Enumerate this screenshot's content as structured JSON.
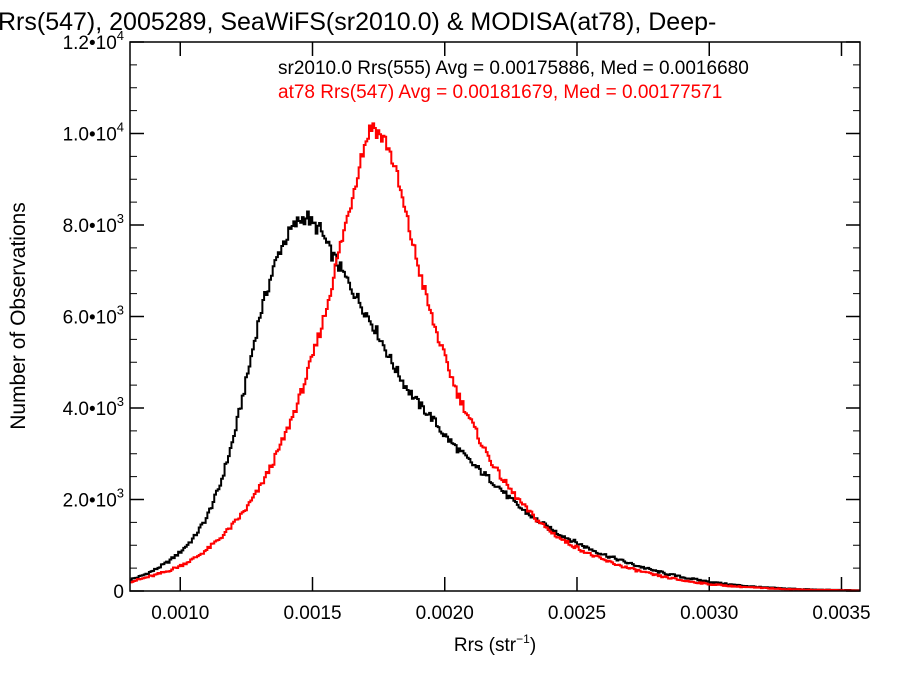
{
  "chart_data": {
    "type": "line",
    "title": "Rrs(547), 2005289, SeaWiFS(sr2010.0) & MODISA(at78), Deep-",
    "xlabel_main": "Rrs (str",
    "xlabel_sup": "−1",
    "xlabel_close": ")",
    "ylabel": "Number of Observations",
    "xlim": [
      0.00081,
      0.00357
    ],
    "ylim": [
      0,
      12000
    ],
    "x_ticks": [
      {
        "value": 0.001,
        "label": "0.0010"
      },
      {
        "value": 0.0015,
        "label": "0.0015"
      },
      {
        "value": 0.002,
        "label": "0.0020"
      },
      {
        "value": 0.0025,
        "label": "0.0025"
      },
      {
        "value": 0.003,
        "label": "0.0030"
      },
      {
        "value": 0.0035,
        "label": "0.0035"
      }
    ],
    "y_ticks": [
      {
        "value": 0,
        "mant": "0",
        "exp": ""
      },
      {
        "value": 2000,
        "mant": "2.0•10",
        "exp": "3"
      },
      {
        "value": 4000,
        "mant": "4.0•10",
        "exp": "3"
      },
      {
        "value": 6000,
        "mant": "6.0•10",
        "exp": "3"
      },
      {
        "value": 8000,
        "mant": "8.0•10",
        "exp": "3"
      },
      {
        "value": 10000,
        "mant": "1.0•10",
        "exp": "4"
      },
      {
        "value": 12000,
        "mant": "1.2•10",
        "exp": "4"
      }
    ],
    "annotations": [
      {
        "text": "sr2010.0 Rrs(555) Avg = 0.00175886, Med = 0.0016680",
        "color": "#000000"
      },
      {
        "text": "at78 Rrs(547) Avg = 0.00181679, Med = 0.00177571",
        "color": "#ff0000"
      }
    ],
    "series": [
      {
        "color": "#000000",
        "x": [
          0.00081,
          0.00085,
          0.0009,
          0.00095,
          0.001,
          0.00105,
          0.0011,
          0.00115,
          0.0012,
          0.00125,
          0.0013,
          0.00135,
          0.00138,
          0.00142,
          0.00145,
          0.00148,
          0.0015,
          0.00153,
          0.00156,
          0.0016,
          0.00163,
          0.00166,
          0.0017,
          0.00175,
          0.0018,
          0.00185,
          0.0019,
          0.00195,
          0.002,
          0.00205,
          0.0021,
          0.00215,
          0.0022,
          0.00225,
          0.0023,
          0.00235,
          0.0024,
          0.00245,
          0.0025,
          0.00255,
          0.0026,
          0.00265,
          0.0027,
          0.0028,
          0.0029,
          0.003,
          0.0031,
          0.0032,
          0.0033,
          0.0034,
          0.0035,
          0.00357
        ],
        "y": [
          250,
          320,
          450,
          620,
          850,
          1150,
          1600,
          2300,
          3300,
          4600,
          6000,
          7000,
          7500,
          7900,
          8100,
          8200,
          8000,
          7900,
          7500,
          7100,
          6800,
          6500,
          6100,
          5600,
          5000,
          4500,
          4100,
          3800,
          3400,
          3100,
          2800,
          2550,
          2300,
          2000,
          1750,
          1550,
          1350,
          1200,
          1050,
          920,
          800,
          700,
          600,
          430,
          300,
          200,
          130,
          80,
          50,
          30,
          20,
          15
        ]
      },
      {
        "color": "#ff0000",
        "x": [
          0.00081,
          0.00085,
          0.0009,
          0.00095,
          0.001,
          0.00105,
          0.0011,
          0.00115,
          0.0012,
          0.00125,
          0.0013,
          0.00135,
          0.0014,
          0.00145,
          0.0015,
          0.00155,
          0.0016,
          0.00165,
          0.00168,
          0.00171,
          0.00173,
          0.00175,
          0.00178,
          0.00181,
          0.00185,
          0.0019,
          0.00195,
          0.002,
          0.00205,
          0.0021,
          0.00215,
          0.0022,
          0.00225,
          0.0023,
          0.00235,
          0.0024,
          0.00245,
          0.0025,
          0.00255,
          0.0026,
          0.00265,
          0.0027,
          0.0028,
          0.0029,
          0.003,
          0.0031,
          0.0032,
          0.0033,
          0.0034,
          0.0035,
          0.00357
        ],
        "y": [
          200,
          260,
          340,
          430,
          550,
          700,
          900,
          1150,
          1450,
          1800,
          2250,
          2800,
          3450,
          4200,
          5100,
          6100,
          7400,
          8600,
          9400,
          10000,
          10200,
          10000,
          9800,
          9300,
          8300,
          7100,
          6000,
          5100,
          4300,
          3700,
          3100,
          2600,
          2200,
          1850,
          1550,
          1300,
          1100,
          950,
          800,
          680,
          580,
          490,
          340,
          230,
          150,
          100,
          65,
          40,
          25,
          15,
          10
        ]
      }
    ]
  }
}
